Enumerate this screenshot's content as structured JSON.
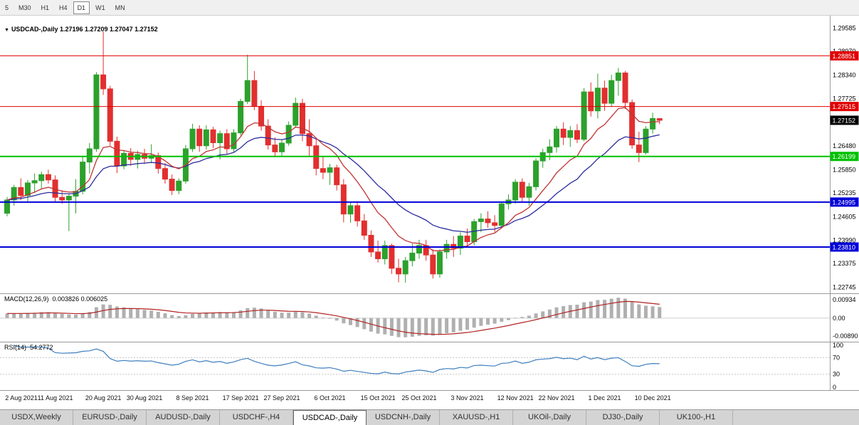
{
  "toolbar": {
    "timeframes": [
      "5",
      "M30",
      "H1",
      "H4",
      "D1",
      "W1",
      "MN"
    ],
    "active": "D1"
  },
  "chart": {
    "marker_icon": "▼",
    "title": "USDCAD-,Daily",
    "ohlc": "1.27196 1.27209 1.27047 1.27152"
  },
  "chart_data": {
    "type": "candlestick",
    "symbol": "USDCAD-",
    "timeframe": "Daily",
    "candles": [
      [
        "2 Aug",
        1.247,
        1.2513,
        1.2462,
        1.2505
      ],
      [
        "3 Aug",
        1.2505,
        1.2545,
        1.249,
        1.2538
      ],
      [
        "4 Aug",
        1.2538,
        1.2562,
        1.2505,
        1.2517
      ],
      [
        "5 Aug",
        1.2517,
        1.2558,
        1.25,
        1.255
      ],
      [
        "6 Aug",
        1.255,
        1.2575,
        1.2523,
        1.2556
      ],
      [
        "9 Aug",
        1.2556,
        1.258,
        1.2535,
        1.2572
      ],
      [
        "10 Aug",
        1.2572,
        1.2585,
        1.2548,
        1.2558
      ],
      [
        "11 Aug",
        1.2558,
        1.257,
        1.25,
        1.2512
      ],
      [
        "12 Aug",
        1.2512,
        1.253,
        1.2495,
        1.2505
      ],
      [
        "13 Aug",
        1.2505,
        1.2522,
        1.2423,
        1.2515
      ],
      [
        "16 Aug",
        1.2515,
        1.256,
        1.247,
        1.2528
      ],
      [
        "17 Aug",
        1.2528,
        1.262,
        1.252,
        1.2605
      ],
      [
        "18 Aug",
        1.2605,
        1.2655,
        1.2575,
        1.264
      ],
      [
        "19 Aug",
        1.264,
        1.2842,
        1.2632,
        1.2835
      ],
      [
        "20 Aug",
        1.2835,
        1.2949,
        1.2782,
        1.2798
      ],
      [
        "23 Aug",
        1.2798,
        1.2806,
        1.2648,
        1.266
      ],
      [
        "24 Aug",
        1.266,
        1.2672,
        1.2576,
        1.2595
      ],
      [
        "25 Aug",
        1.2595,
        1.2636,
        1.2586,
        1.2628
      ],
      [
        "26 Aug",
        1.2628,
        1.2642,
        1.2595,
        1.2612
      ],
      [
        "27 Aug",
        1.2612,
        1.2635,
        1.2588,
        1.2625
      ],
      [
        "30 Aug",
        1.2625,
        1.264,
        1.26,
        1.2615
      ],
      [
        "31 Aug",
        1.2615,
        1.2652,
        1.2602,
        1.2622
      ],
      [
        "1 Sep",
        1.2622,
        1.263,
        1.2575,
        1.2588
      ],
      [
        "2 Sep",
        1.2588,
        1.2602,
        1.2548,
        1.256
      ],
      [
        "3 Sep",
        1.256,
        1.2572,
        1.2518,
        1.253
      ],
      [
        "6 Sep",
        1.253,
        1.2562,
        1.252,
        1.2555
      ],
      [
        "7 Sep",
        1.2555,
        1.265,
        1.2548,
        1.264
      ],
      [
        "8 Sep",
        1.264,
        1.2706,
        1.2632,
        1.2692
      ],
      [
        "9 Sep",
        1.2692,
        1.2702,
        1.2632,
        1.2648
      ],
      [
        "10 Sep",
        1.2648,
        1.2702,
        1.2638,
        1.269
      ],
      [
        "13 Sep",
        1.269,
        1.2698,
        1.2642,
        1.2656
      ],
      [
        "14 Sep",
        1.2656,
        1.2688,
        1.2612,
        1.268
      ],
      [
        "15 Sep",
        1.268,
        1.2692,
        1.2626,
        1.264
      ],
      [
        "16 Sep",
        1.264,
        1.2692,
        1.2632,
        1.2682
      ],
      [
        "17 Sep",
        1.2682,
        1.2772,
        1.2675,
        1.2765
      ],
      [
        "20 Sep",
        1.2765,
        1.2888,
        1.2758,
        1.282
      ],
      [
        "21 Sep",
        1.282,
        1.2845,
        1.2742,
        1.2752
      ],
      [
        "22 Sep",
        1.2752,
        1.2768,
        1.2688,
        1.27
      ],
      [
        "23 Sep",
        1.27,
        1.2718,
        1.2638,
        1.265
      ],
      [
        "24 Sep",
        1.265,
        1.267,
        1.2618,
        1.2632
      ],
      [
        "27 Sep",
        1.2632,
        1.2665,
        1.262,
        1.2655
      ],
      [
        "28 Sep",
        1.2655,
        1.2712,
        1.2648,
        1.2702
      ],
      [
        "29 Sep",
        1.2702,
        1.2775,
        1.2695,
        1.276
      ],
      [
        "30 Sep",
        1.276,
        1.2772,
        1.266,
        1.268
      ],
      [
        "1 Oct",
        1.268,
        1.2718,
        1.262,
        1.2648
      ],
      [
        "4 Oct",
        1.2648,
        1.2665,
        1.257,
        1.2588
      ],
      [
        "5 Oct",
        1.2588,
        1.262,
        1.256,
        1.2578
      ],
      [
        "6 Oct",
        1.2578,
        1.26,
        1.2545,
        1.259
      ],
      [
        "7 Oct",
        1.259,
        1.2598,
        1.253,
        1.2545
      ],
      [
        "8 Oct",
        1.2545,
        1.256,
        1.2446,
        1.2468
      ],
      [
        "11 Oct",
        1.2468,
        1.25,
        1.2445,
        1.249
      ],
      [
        "12 Oct",
        1.249,
        1.2502,
        1.2435,
        1.245
      ],
      [
        "13 Oct",
        1.245,
        1.2468,
        1.24,
        1.2412
      ],
      [
        "14 Oct",
        1.2412,
        1.2425,
        1.2355,
        1.2368
      ],
      [
        "15 Oct",
        1.2368,
        1.2398,
        1.234,
        1.235
      ],
      [
        "18 Oct",
        1.235,
        1.2398,
        1.2335,
        1.2385
      ],
      [
        "19 Oct",
        1.2385,
        1.239,
        1.231,
        1.2325
      ],
      [
        "20 Oct",
        1.2325,
        1.235,
        1.2288,
        1.231
      ],
      [
        "21 Oct",
        1.231,
        1.2355,
        1.2287,
        1.2345
      ],
      [
        "22 Oct",
        1.2345,
        1.239,
        1.233,
        1.2365
      ],
      [
        "25 Oct",
        1.2365,
        1.24,
        1.235,
        1.2385
      ],
      [
        "26 Oct",
        1.2385,
        1.24,
        1.2345,
        1.236
      ],
      [
        "27 Oct",
        1.236,
        1.2375,
        1.2298,
        1.231
      ],
      [
        "28 Oct",
        1.231,
        1.2375,
        1.23,
        1.2368
      ],
      [
        "29 Oct",
        1.2368,
        1.24,
        1.235,
        1.2388
      ],
      [
        "1 Nov",
        1.2388,
        1.241,
        1.2355,
        1.2378
      ],
      [
        "2 Nov",
        1.2378,
        1.242,
        1.236,
        1.241
      ],
      [
        "3 Nov",
        1.241,
        1.243,
        1.238,
        1.2395
      ],
      [
        "4 Nov",
        1.2395,
        1.2455,
        1.2385,
        1.2448
      ],
      [
        "5 Nov",
        1.2448,
        1.247,
        1.242,
        1.2455
      ],
      [
        "8 Nov",
        1.2455,
        1.2475,
        1.2432,
        1.2445
      ],
      [
        "9 Nov",
        1.2445,
        1.2465,
        1.242,
        1.2438
      ],
      [
        "10 Nov",
        1.2438,
        1.25,
        1.243,
        1.2495
      ],
      [
        "11 Nov",
        1.2495,
        1.252,
        1.248,
        1.2505
      ],
      [
        "12 Nov",
        1.2505,
        1.256,
        1.2495,
        1.2552
      ],
      [
        "15 Nov",
        1.2552,
        1.2562,
        1.25,
        1.2512
      ],
      [
        "16 Nov",
        1.2512,
        1.255,
        1.249,
        1.254
      ],
      [
        "17 Nov",
        1.254,
        1.2615,
        1.253,
        1.2608
      ],
      [
        "18 Nov",
        1.2608,
        1.264,
        1.259,
        1.263
      ],
      [
        "19 Nov",
        1.263,
        1.2665,
        1.261,
        1.2645
      ],
      [
        "22 Nov",
        1.2645,
        1.27,
        1.263,
        1.2692
      ],
      [
        "23 Nov",
        1.2692,
        1.271,
        1.265,
        1.267
      ],
      [
        "24 Nov",
        1.267,
        1.27,
        1.2645,
        1.2688
      ],
      [
        "25 Nov",
        1.2688,
        1.2705,
        1.2655,
        1.2665
      ],
      [
        "26 Nov",
        1.2665,
        1.28,
        1.266,
        1.279
      ],
      [
        "29 Nov",
        1.279,
        1.2815,
        1.2725,
        1.274
      ],
      [
        "30 Nov",
        1.274,
        1.2838,
        1.272,
        1.28
      ],
      [
        "1 Dec",
        1.28,
        1.282,
        1.274,
        1.276
      ],
      [
        "2 Dec",
        1.276,
        1.2835,
        1.275,
        1.282
      ],
      [
        "3 Dec",
        1.282,
        1.2853,
        1.278,
        1.284
      ],
      [
        "6 Dec",
        1.284,
        1.2845,
        1.2745,
        1.2762
      ],
      [
        "7 Dec",
        1.2762,
        1.277,
        1.264,
        1.265
      ],
      [
        "8 Dec",
        1.265,
        1.2685,
        1.2605,
        1.263
      ],
      [
        "9 Dec",
        1.263,
        1.27,
        1.2625,
        1.2692
      ],
      [
        "10 Dec",
        1.2692,
        1.2735,
        1.268,
        1.272
      ],
      [
        "13 Dec",
        1.27196,
        1.27209,
        1.27047,
        1.27152
      ]
    ],
    "x_labels": [
      [
        0,
        "2 Aug 2021"
      ],
      [
        7,
        "11 Aug 2021"
      ],
      [
        14,
        "20 Aug 2021"
      ],
      [
        20,
        "30 Aug 2021"
      ],
      [
        27,
        "8 Sep 2021"
      ],
      [
        34,
        "17 Sep 2021"
      ],
      [
        40,
        "27 Sep 2021"
      ],
      [
        47,
        "6 Oct 2021"
      ],
      [
        54,
        "15 Oct 2021"
      ],
      [
        60,
        "25 Oct 2021"
      ],
      [
        67,
        "3 Nov 2021"
      ],
      [
        74,
        "12 Nov 2021"
      ],
      [
        80,
        "22 Nov 2021"
      ],
      [
        87,
        "1 Dec 2021"
      ],
      [
        94,
        "10 Dec 2021"
      ]
    ],
    "y_axis": {
      "min": 1.2259,
      "max": 1.2976,
      "labels": [
        "1.29585",
        "1.28970",
        "1.28340",
        "1.27725",
        "1.26480",
        "1.25850",
        "1.25235",
        "1.24605",
        "1.23990",
        "1.23375",
        "1.22745"
      ]
    },
    "levels": [
      {
        "price": 1.28851,
        "label": "1.28851",
        "color": "#e00000",
        "line_width": 1
      },
      {
        "price": 1.27515,
        "label": "1.27515",
        "color": "#e00000",
        "line_width": 1
      },
      {
        "price": 1.26199,
        "label": "1.26199",
        "color": "#00c000",
        "line_width": 2
      },
      {
        "price": 1.24995,
        "label": "1.24995",
        "color": "#0000d8",
        "line_width": 2
      },
      {
        "price": 1.2381,
        "label": "1.23810",
        "color": "#0000d8",
        "line_width": 2
      }
    ],
    "current_price": {
      "label": "1.27152",
      "price": 1.27152,
      "color": "#000000"
    },
    "overlays": [
      {
        "name": "ma-fast",
        "type": "ema",
        "period": 10
      },
      {
        "name": "ma-slow",
        "type": "ema",
        "period": 21
      }
    ]
  },
  "indicators": {
    "macd": {
      "title": "MACD(12,26,9)",
      "values": "0.003826 0.006025",
      "params": {
        "fast": 12,
        "slow": 26,
        "signal": 9
      },
      "axis_labels": [
        "0.00934",
        "0.00",
        "-0.00890"
      ]
    },
    "rsi": {
      "title": "RSI(14)",
      "value": "54.2772",
      "period": 14,
      "axis_labels": [
        "100",
        "70",
        "30",
        "0"
      ],
      "levels": [
        70,
        30
      ]
    }
  },
  "tabs": [
    {
      "label": "USDX,Weekly",
      "active": false
    },
    {
      "label": "EURUSD-,Daily",
      "active": false
    },
    {
      "label": "AUDUSD-,Daily",
      "active": false
    },
    {
      "label": "USDCHF-,H4",
      "active": false
    },
    {
      "label": "USDCAD-,Daily",
      "active": true
    },
    {
      "label": "USDCNH-,Daily",
      "active": false
    },
    {
      "label": "XAUUSD-,H1",
      "active": false
    },
    {
      "label": "UKOil-,Daily",
      "active": false
    },
    {
      "label": "DJ30-,Daily",
      "active": false
    },
    {
      "label": "UK100-,H1",
      "active": false
    }
  ],
  "colors": {
    "candle_up": "#2ca12c",
    "candle_down": "#e22f2f",
    "ma_fast": "#c03434",
    "ma_slow": "#2b2b9e",
    "macd_hist": "#b0b0b0",
    "macd_signal": "#b22222",
    "rsi_line": "#3f7fbf",
    "axis_text": "#000000"
  }
}
